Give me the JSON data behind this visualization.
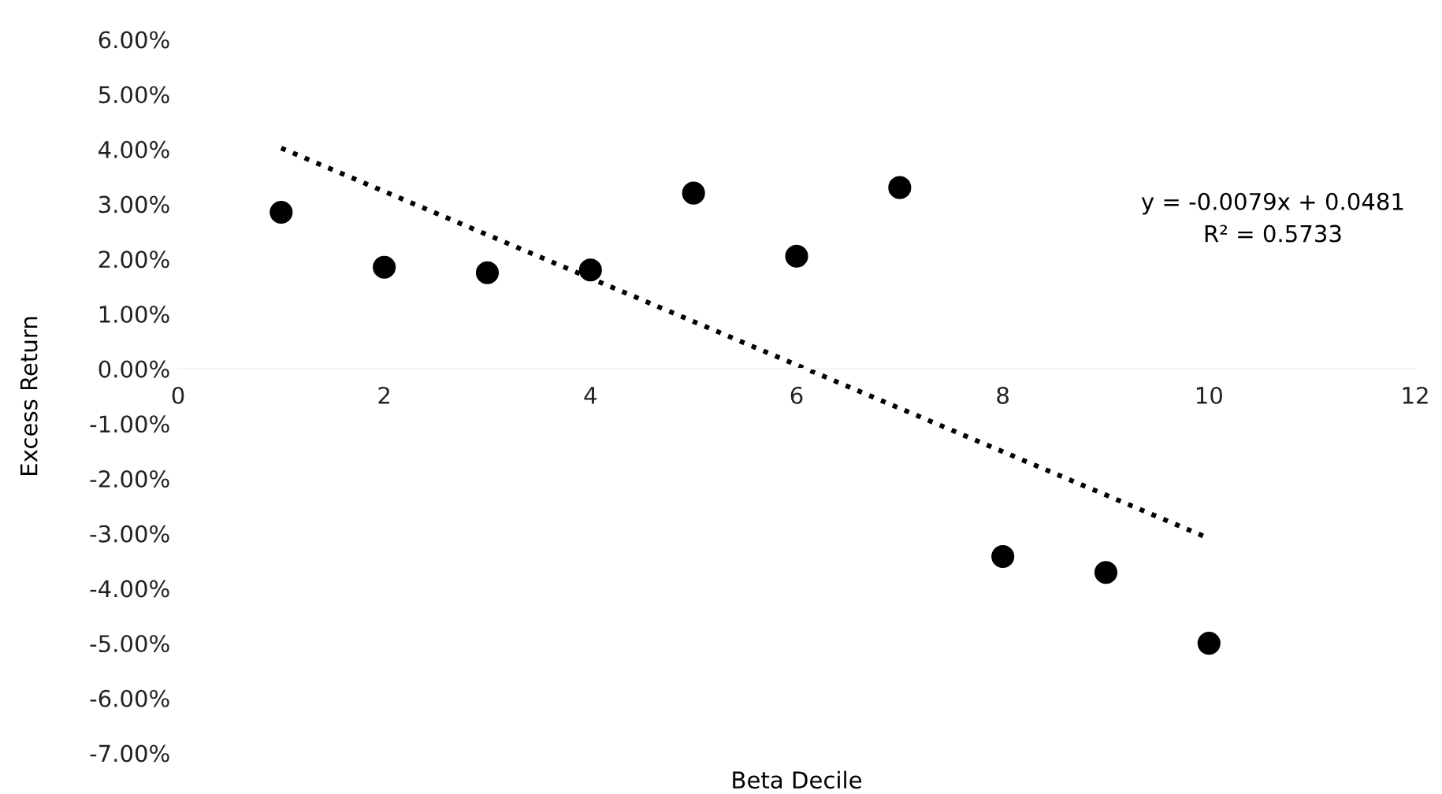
{
  "chart_data": {
    "type": "scatter",
    "xlabel": "Beta Decile",
    "ylabel": "Excess Return",
    "x": [
      1,
      2,
      3,
      4,
      5,
      6,
      7,
      8,
      9,
      10
    ],
    "series": [
      {
        "color": "#000000",
        "values": [
          2.85,
          1.85,
          1.75,
          1.8,
          3.2,
          2.05,
          3.3,
          -3.42,
          -3.71,
          -5.0
        ]
      },
      {
        "type": "line",
        "color": "#000000",
        "line_style": "dotted",
        "marker": "none",
        "x": [
          1,
          10
        ],
        "values": [
          4.02,
          -3.09
        ]
      }
    ],
    "marker": "circle",
    "xlim": [
      0,
      12
    ],
    "xticks": [
      0,
      2,
      4,
      6,
      8,
      10,
      12
    ],
    "ylim": [
      -7,
      6
    ],
    "yticks": [
      {
        "value": 6,
        "label": "6.00%"
      },
      {
        "value": 5,
        "label": "5.00%"
      },
      {
        "value": 4,
        "label": "4.00%"
      },
      {
        "value": 3,
        "label": "3.00%"
      },
      {
        "value": 2,
        "label": "2.00%"
      },
      {
        "value": 1,
        "label": "1.00%"
      },
      {
        "value": 0,
        "label": "0.00%"
      },
      {
        "value": -1,
        "label": "-1.00%"
      },
      {
        "value": -2,
        "label": "-2.00%"
      },
      {
        "value": -3,
        "label": "-3.00%"
      },
      {
        "value": -4,
        "label": "-4.00%"
      },
      {
        "value": -5,
        "label": "-5.00%"
      },
      {
        "value": -6,
        "label": "-6.00%"
      },
      {
        "value": -7,
        "label": "-7.00%"
      }
    ],
    "annotations": [
      "y = -0.0079x + 0.0481",
      "R² = 0.5733"
    ],
    "grid": false,
    "legend": false
  }
}
